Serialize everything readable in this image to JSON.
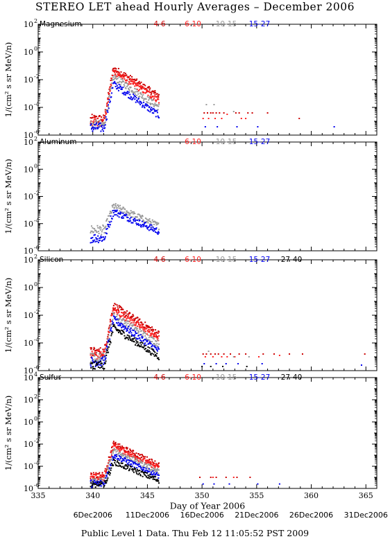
{
  "title": "STEREO LET ahead Hourly Averages – December 2006",
  "footer": "Public Level 1 Data. Thu Feb 12 11:05:52 PST 2009",
  "date_labels": [
    {
      "day": 340,
      "label": "6Dec2006"
    },
    {
      "day": 345,
      "label": "11Dec2006"
    },
    {
      "day": 350,
      "label": "16Dec2006"
    },
    {
      "day": 355,
      "label": "21Dec2006"
    },
    {
      "day": 360,
      "label": "26Dec2006"
    },
    {
      "day": 365,
      "label": "31Dec2006"
    }
  ],
  "colors": {
    "4-6": "#cc0000",
    "6-10": "#ff2020",
    "10-15": "#999999",
    "15-27": "#0000ee",
    "27-40": "#000000",
    "axis": "#000000"
  },
  "chart_data": [
    {
      "type": "scatter",
      "panel": "Magnesium",
      "xlabel": "",
      "ylabel": "1/(cm² s sr MeV/n)",
      "xlim": [
        335,
        366
      ],
      "ylim_exp": [
        -6,
        2
      ],
      "ytick_exp": [
        -6,
        -4,
        -2,
        0,
        2
      ],
      "xticks": [
        335,
        340,
        345,
        350,
        355,
        360,
        365
      ],
      "log_y": true,
      "legend": [
        "4-6",
        "6-10",
        "10-15",
        "15-27"
      ],
      "series_profiles": [
        {
          "name": "4-6",
          "base_exp": -5.0,
          "peak_exp": -1.2,
          "decay_exp": -3.2,
          "late": [
            [
              350.2,
              -4.4
            ],
            [
              350.5,
              -4.4
            ],
            [
              350.8,
              -4.4
            ],
            [
              351.0,
              -4.4
            ],
            [
              351.3,
              -4.4
            ],
            [
              351.6,
              -4.4
            ],
            [
              352.0,
              -4.4
            ],
            [
              353.1,
              -4.4
            ],
            [
              353.4,
              -4.4
            ],
            [
              354.2,
              -4.4
            ],
            [
              354.6,
              -4.4
            ],
            [
              356.0,
              -4.4
            ],
            [
              358.9,
              -4.8
            ]
          ]
        },
        {
          "name": "6-10",
          "base_exp": -5.2,
          "peak_exp": -1.4,
          "decay_exp": -3.5,
          "late": [
            [
              350.1,
              -4.8
            ],
            [
              350.6,
              -4.8
            ],
            [
              351.2,
              -4.8
            ],
            [
              351.8,
              -4.8
            ],
            [
              352.3,
              -4.5
            ],
            [
              353.6,
              -4.8
            ],
            [
              354.0,
              -4.8
            ]
          ]
        },
        {
          "name": "10-15",
          "base_exp": -5.4,
          "peak_exp": -1.8,
          "decay_exp": -4.0,
          "late": [
            [
              350.4,
              -3.8
            ],
            [
              351.1,
              -3.8
            ],
            [
              352.9,
              -4.3
            ]
          ]
        },
        {
          "name": "15-27",
          "base_exp": -5.6,
          "peak_exp": -2.3,
          "decay_exp": -4.6,
          "late": [
            [
              350.3,
              -5.4
            ],
            [
              351.4,
              -5.4
            ],
            [
              353.2,
              -5.4
            ],
            [
              355.1,
              -5.4
            ],
            [
              362.1,
              -5.4
            ]
          ]
        }
      ]
    },
    {
      "type": "scatter",
      "panel": "Aluminum",
      "xlabel": "",
      "ylabel": "1/(cm² s sr MeV/n)",
      "xlim": [
        335,
        366
      ],
      "ylim_exp": [
        -6,
        2
      ],
      "ytick_exp": [
        -6,
        -4,
        -2,
        0,
        2
      ],
      "xticks": [
        335,
        340,
        345,
        350,
        355,
        360,
        365
      ],
      "log_y": true,
      "legend": [
        "6-10",
        "10-15",
        "15-27"
      ],
      "series_profiles": [
        {
          "name": "10-15",
          "base_exp": -4.6,
          "peak_exp": -2.7,
          "decay_exp": -4.2,
          "late": []
        },
        {
          "name": "15-27",
          "base_exp": -5.2,
          "peak_exp": -3.1,
          "decay_exp": -4.6,
          "late": []
        }
      ]
    },
    {
      "type": "scatter",
      "panel": "Silicon",
      "xlabel": "",
      "ylabel": "1/(cm² s sr MeV/n)",
      "xlim": [
        335,
        366
      ],
      "ylim_exp": [
        -6,
        2
      ],
      "ytick_exp": [
        -6,
        -4,
        -2,
        0,
        2
      ],
      "xticks": [
        335,
        340,
        345,
        350,
        355,
        360,
        365
      ],
      "log_y": true,
      "legend": [
        "4-6",
        "6-10",
        "10-15",
        "15-27",
        "27-40"
      ],
      "series_profiles": [
        {
          "name": "4-6",
          "base_exp": -4.8,
          "peak_exp": -1.3,
          "decay_exp": -3.4,
          "late": [
            [
              350.1,
              -4.8
            ],
            [
              350.4,
              -4.8
            ],
            [
              350.8,
              -4.8
            ],
            [
              351.2,
              -4.8
            ],
            [
              351.5,
              -4.8
            ],
            [
              352.0,
              -4.8
            ],
            [
              352.6,
              -4.8
            ],
            [
              353.4,
              -4.8
            ],
            [
              354.0,
              -4.8
            ],
            [
              355.6,
              -4.8
            ],
            [
              356.6,
              -4.8
            ],
            [
              358.0,
              -4.8
            ],
            [
              359.2,
              -4.8
            ],
            [
              364.9,
              -4.8
            ]
          ]
        },
        {
          "name": "6-10",
          "base_exp": -5.0,
          "peak_exp": -1.6,
          "decay_exp": -3.7,
          "late": [
            [
              350.3,
              -5.0
            ],
            [
              351.0,
              -5.0
            ],
            [
              351.8,
              -5.0
            ],
            [
              352.3,
              -5.0
            ],
            [
              353.0,
              -5.0
            ],
            [
              355.2,
              -5.0
            ],
            [
              357.1,
              -4.9
            ]
          ]
        },
        {
          "name": "10-15",
          "base_exp": -5.2,
          "peak_exp": -2.0,
          "decay_exp": -4.1,
          "late": [
            [
              350.6,
              -4.6
            ],
            [
              352.9,
              -5.0
            ],
            [
              354.3,
              -5.0
            ]
          ]
        },
        {
          "name": "15-27",
          "base_exp": -5.5,
          "peak_exp": -2.3,
          "decay_exp": -4.6,
          "late": [
            [
              350.2,
              -5.5
            ],
            [
              351.3,
              -5.5
            ],
            [
              352.2,
              -5.5
            ],
            [
              353.3,
              -5.5
            ],
            [
              355.5,
              -5.5
            ],
            [
              364.6,
              -5.6
            ]
          ]
        },
        {
          "name": "27-40",
          "base_exp": -5.8,
          "peak_exp": -2.9,
          "decay_exp": -5.0,
          "late": [
            [
              350.0,
              -5.7
            ],
            [
              350.8,
              -5.7
            ],
            [
              351.9,
              -5.7
            ],
            [
              354.1,
              -5.7
            ]
          ]
        }
      ]
    },
    {
      "type": "scatter",
      "panel": "Sulfur",
      "xlabel": "Day of Year 2006",
      "ylabel": "1/(cm² s sr MeV/n)",
      "xlim": [
        335,
        366
      ],
      "ylim_exp": [
        -6,
        4
      ],
      "ytick_exp": [
        -6,
        -4,
        -2,
        0,
        2,
        4
      ],
      "xticks": [
        335,
        340,
        345,
        350,
        355,
        360,
        365
      ],
      "log_y": true,
      "legend": [
        "4-6",
        "6-10",
        "10-15",
        "15-27",
        "27-40"
      ],
      "series_profiles": [
        {
          "name": "4-6",
          "base_exp": -5.0,
          "peak_exp": -2.0,
          "decay_exp": -3.9,
          "late": [
            [
              349.8,
              -5.0
            ],
            [
              350.8,
              -5.0
            ],
            [
              351.3,
              -5.0
            ],
            [
              352.2,
              -5.0
            ],
            [
              353.2,
              -5.0
            ],
            [
              354.4,
              -5.0
            ]
          ]
        },
        {
          "name": "6-10",
          "base_exp": -5.2,
          "peak_exp": -2.2,
          "decay_exp": -4.2,
          "late": [
            [
              351.0,
              -5.0
            ],
            [
              352.9,
              -5.0
            ]
          ]
        },
        {
          "name": "10-15",
          "base_exp": -5.5,
          "peak_exp": -2.6,
          "decay_exp": -4.5,
          "late": []
        },
        {
          "name": "15-27",
          "base_exp": -5.7,
          "peak_exp": -3.0,
          "decay_exp": -4.9,
          "late": [
            [
              350.1,
              -5.6
            ],
            [
              351.1,
              -5.6
            ],
            [
              352.5,
              -5.6
            ],
            [
              355.1,
              -5.6
            ],
            [
              357.1,
              -5.6
            ]
          ]
        },
        {
          "name": "27-40",
          "base_exp": -5.9,
          "peak_exp": -3.6,
          "decay_exp": -5.3,
          "late": []
        }
      ]
    }
  ]
}
